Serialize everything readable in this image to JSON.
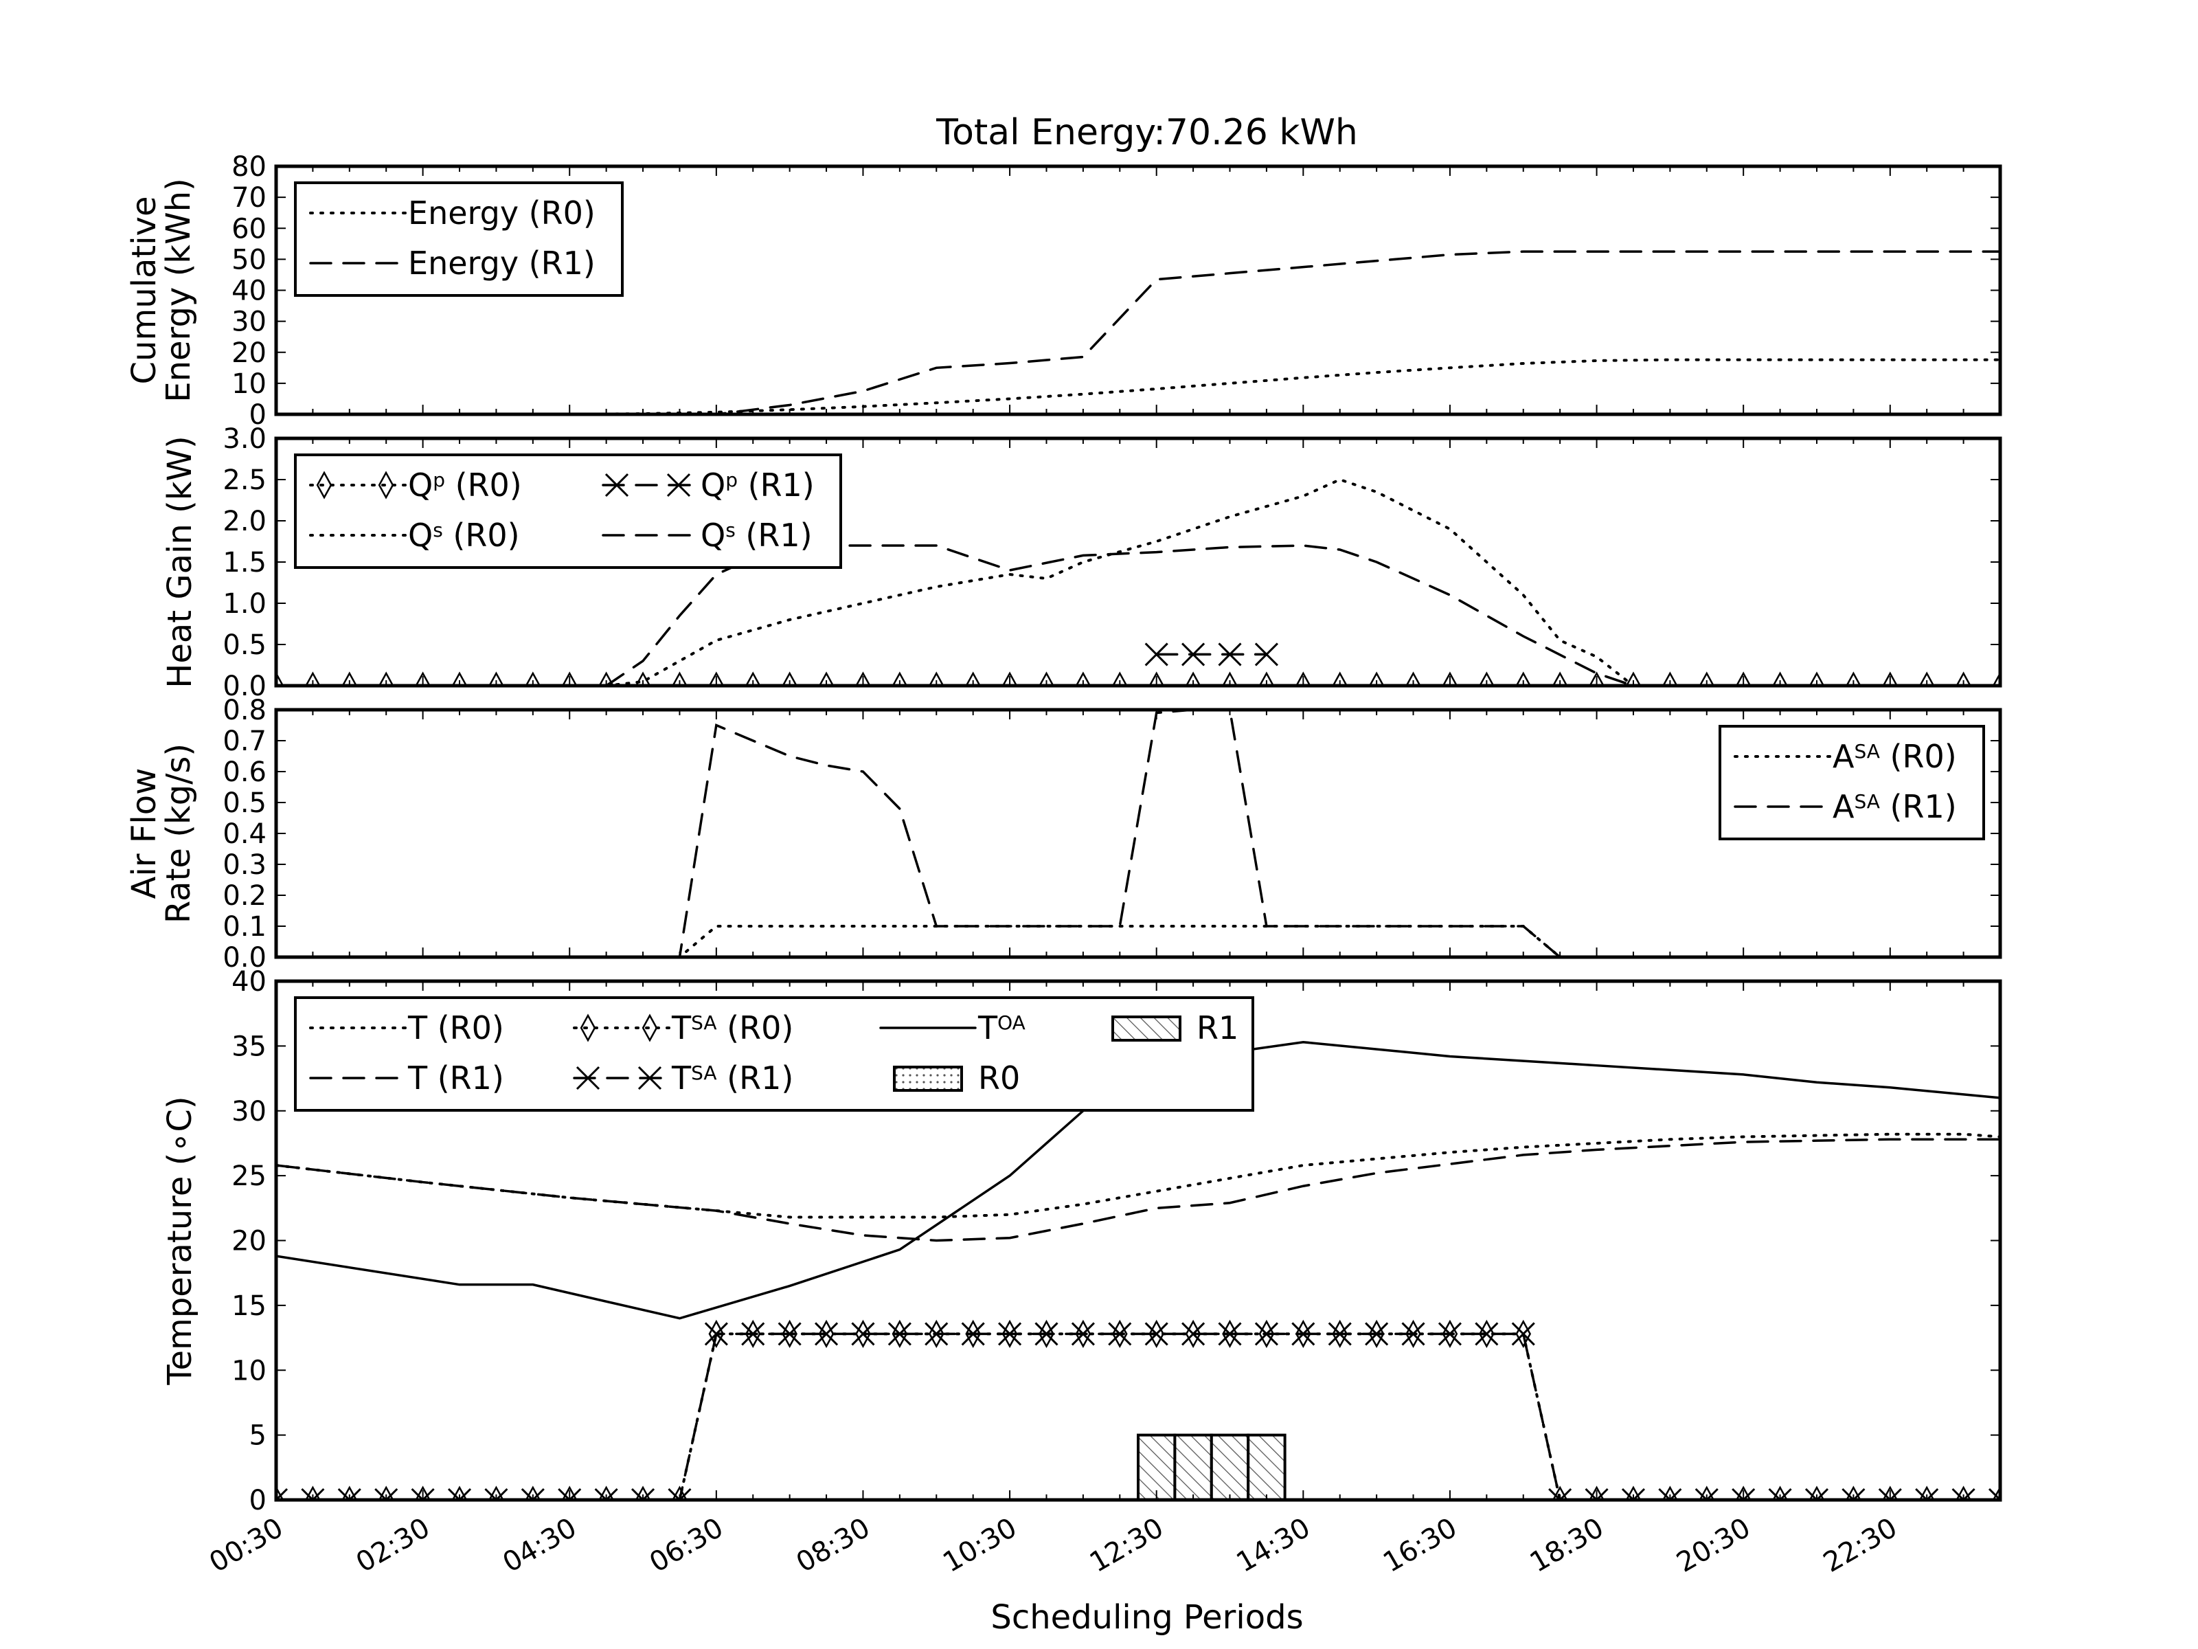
{
  "title": "Total Energy:70.26 kWh",
  "xlabel": "Scheduling Periods",
  "x_tick_labels": [
    "00:30",
    "02:30",
    "04:30",
    "06:30",
    "08:30",
    "10:30",
    "12:30",
    "14:30",
    "16:30",
    "18:30",
    "20:30",
    "22:30"
  ],
  "colors": {
    "line": "#000000",
    "background": "#ffffff",
    "hatch": "#555555"
  },
  "chart_data": [
    {
      "type": "line",
      "ylabel_lines": [
        "Cumulative",
        "Energy (kWh)"
      ],
      "ylim": [
        0,
        80
      ],
      "yticks": [
        0,
        10,
        20,
        30,
        40,
        50,
        60,
        70,
        80
      ],
      "legend": {
        "position": "top-left",
        "entries": [
          "Energy (R0)",
          "Energy (R1)"
        ]
      },
      "series": [
        {
          "name": "Energy (R0)",
          "style": "dotted",
          "x": [
            0,
            8,
            10,
            12,
            14,
            16,
            18,
            20,
            22,
            24,
            26,
            28,
            30,
            32,
            34,
            36,
            38,
            40,
            42,
            44,
            46,
            47
          ],
          "y": [
            0,
            0,
            0.2,
            0.7,
            1.5,
            2.5,
            3.7,
            5.0,
            6.5,
            8.2,
            10.0,
            11.8,
            13.5,
            15.0,
            16.4,
            17.3,
            17.6,
            17.6,
            17.6,
            17.6,
            17.6,
            17.6
          ]
        },
        {
          "name": "Energy (R1)",
          "style": "dashed",
          "x": [
            0,
            12,
            14,
            16,
            18,
            20,
            22,
            24,
            26,
            28,
            30,
            32,
            34,
            36,
            38,
            40,
            42,
            44,
            46,
            47
          ],
          "y": [
            0,
            0,
            3.0,
            7.5,
            15.0,
            16.5,
            18.5,
            43.5,
            45.5,
            47.5,
            49.5,
            51.5,
            52.5,
            52.5,
            52.5,
            52.5,
            52.5,
            52.5,
            52.5,
            52.5
          ]
        }
      ]
    },
    {
      "type": "line",
      "ylabel_lines": [
        "Heat Gain (kW)"
      ],
      "ylim": [
        0,
        3.0
      ],
      "yticks": [
        0.0,
        0.5,
        1.0,
        1.5,
        2.0,
        2.5,
        3.0
      ],
      "legend": {
        "position": "top-left",
        "entries": [
          "Qp (R0)",
          "Qp (R1)",
          "Qs (R0)",
          "Qs (R1)"
        ]
      },
      "series": [
        {
          "name": "Qp (R0)",
          "style": "dotted",
          "marker": "thin-diamond",
          "x": [
            0,
            1,
            2,
            3,
            4,
            5,
            6,
            7,
            8,
            9,
            10,
            11,
            12,
            13,
            14,
            15,
            16,
            17,
            18,
            19,
            20,
            21,
            22,
            23,
            24,
            25,
            26,
            27,
            28,
            29,
            30,
            31,
            32,
            33,
            34,
            35,
            36,
            37,
            38,
            39,
            40,
            41,
            42,
            43,
            44,
            45,
            46,
            47
          ],
          "y": [
            0,
            0,
            0,
            0,
            0,
            0,
            0,
            0,
            0,
            0,
            0,
            0,
            0,
            0,
            0,
            0,
            0,
            0,
            0,
            0,
            0,
            0,
            0,
            0,
            0,
            0,
            0,
            0,
            0,
            0,
            0,
            0,
            0,
            0,
            0,
            0,
            0,
            0,
            0,
            0,
            0,
            0,
            0,
            0,
            0,
            0,
            0,
            0
          ]
        },
        {
          "name": "Qp (R1)",
          "style": "dashed",
          "marker": "x",
          "x": [
            24,
            25,
            26,
            27
          ],
          "y": [
            0.38,
            0.38,
            0.38,
            0.38
          ]
        },
        {
          "name": "Qs (R0)",
          "style": "dotted",
          "x": [
            9,
            10,
            12,
            14,
            16,
            18,
            20,
            21,
            22,
            24,
            26,
            28,
            29,
            30,
            32,
            34,
            35,
            36,
            37
          ],
          "y": [
            0,
            0.05,
            0.55,
            0.8,
            1.0,
            1.2,
            1.35,
            1.3,
            1.5,
            1.75,
            2.05,
            2.3,
            2.5,
            2.35,
            1.9,
            1.1,
            0.55,
            0.35,
            0
          ]
        },
        {
          "name": "Qs (R1)",
          "style": "dashed",
          "x": [
            9,
            10,
            11,
            12,
            13,
            14,
            16,
            18,
            20,
            22,
            24,
            26,
            28,
            29,
            30,
            32,
            34,
            36,
            37
          ],
          "y": [
            0,
            0.3,
            0.85,
            1.35,
            1.55,
            1.7,
            1.7,
            1.7,
            1.4,
            1.58,
            1.62,
            1.68,
            1.7,
            1.65,
            1.5,
            1.1,
            0.6,
            0.15,
            0
          ]
        }
      ]
    },
    {
      "type": "line",
      "ylabel_lines": [
        "Air Flow",
        "Rate (kg/s)"
      ],
      "ylim": [
        0,
        0.8
      ],
      "yticks": [
        0.0,
        0.1,
        0.2,
        0.3,
        0.4,
        0.5,
        0.6,
        0.7,
        0.8
      ],
      "legend": {
        "position": "top-right",
        "entries": [
          "ASA (R0)",
          "ASA (R1)"
        ]
      },
      "series": [
        {
          "name": "ASA (R0)",
          "style": "dotted",
          "x": [
            0,
            11,
            12,
            20,
            34,
            35,
            47
          ],
          "y": [
            0,
            0,
            0.1,
            0.1,
            0.1,
            0,
            0
          ]
        },
        {
          "name": "ASA (R1)",
          "style": "dashed",
          "x": [
            0,
            11,
            12,
            13,
            14,
            15,
            16,
            17,
            18,
            19,
            23,
            24,
            25,
            26,
            27,
            34,
            35,
            47
          ],
          "y": [
            0,
            0,
            0.75,
            0.7,
            0.65,
            0.62,
            0.6,
            0.48,
            0.1,
            0.1,
            0.1,
            0.79,
            0.8,
            0.8,
            0.1,
            0.1,
            0,
            0
          ]
        }
      ]
    },
    {
      "type": "line",
      "ylabel_lines": [
        "Temperature (∘C)"
      ],
      "ylim": [
        0,
        40
      ],
      "yticks": [
        0,
        5,
        10,
        15,
        20,
        25,
        30,
        35,
        40
      ],
      "legend": {
        "position": "top-left",
        "entries": [
          "T (R0)",
          "T (R1)",
          "TSA (R0)",
          "TSA (R1)",
          "TOA",
          "R0",
          "R1"
        ]
      },
      "series": [
        {
          "name": "T (R0)",
          "style": "dotted",
          "x": [
            0,
            4,
            8,
            12,
            14,
            16,
            18,
            20,
            22,
            24,
            26,
            28,
            30,
            32,
            34,
            36,
            38,
            40,
            42,
            44,
            46,
            47
          ],
          "y": [
            25.8,
            24.5,
            23.3,
            22.3,
            21.8,
            21.8,
            21.8,
            22.0,
            22.8,
            23.8,
            24.8,
            25.8,
            26.3,
            26.8,
            27.2,
            27.5,
            27.8,
            28.0,
            28.1,
            28.2,
            28.2,
            28.0
          ]
        },
        {
          "name": "T (R1)",
          "style": "dashed",
          "x": [
            0,
            4,
            8,
            12,
            14,
            16,
            18,
            20,
            22,
            24,
            26,
            28,
            30,
            32,
            34,
            36,
            38,
            40,
            42,
            44,
            46,
            47
          ],
          "y": [
            25.8,
            24.5,
            23.3,
            22.3,
            21.3,
            20.4,
            20.0,
            20.2,
            21.3,
            22.5,
            22.9,
            24.2,
            25.2,
            25.9,
            26.6,
            27.0,
            27.3,
            27.6,
            27.7,
            27.8,
            27.8,
            27.8
          ]
        },
        {
          "name": "TSA (R0)",
          "style": "dotted",
          "marker": "thin-diamond",
          "x": [
            0,
            1,
            2,
            3,
            4,
            5,
            6,
            7,
            8,
            9,
            10,
            11,
            12,
            13,
            14,
            15,
            16,
            17,
            18,
            19,
            20,
            21,
            22,
            23,
            24,
            25,
            26,
            27,
            28,
            29,
            30,
            31,
            32,
            33,
            34,
            35,
            36,
            37,
            38,
            39,
            40,
            41,
            42,
            43,
            44,
            45,
            46,
            47
          ],
          "y": [
            0,
            0,
            0,
            0,
            0,
            0,
            0,
            0,
            0,
            0,
            0,
            0,
            12.8,
            12.8,
            12.8,
            12.8,
            12.8,
            12.8,
            12.8,
            12.8,
            12.8,
            12.8,
            12.8,
            12.8,
            12.8,
            12.8,
            12.8,
            12.8,
            12.8,
            12.8,
            12.8,
            12.8,
            12.8,
            12.8,
            12.8,
            0,
            0,
            0,
            0,
            0,
            0,
            0,
            0,
            0,
            0,
            0,
            0,
            0
          ]
        },
        {
          "name": "TSA (R1)",
          "style": "dashed",
          "marker": "x",
          "x": [
            0,
            1,
            2,
            3,
            4,
            5,
            6,
            7,
            8,
            9,
            10,
            11,
            12,
            13,
            14,
            15,
            16,
            17,
            18,
            19,
            20,
            21,
            22,
            23,
            24,
            25,
            26,
            27,
            28,
            29,
            30,
            31,
            32,
            33,
            34,
            35,
            36,
            37,
            38,
            39,
            40,
            41,
            42,
            43,
            44,
            45,
            46,
            47
          ],
          "y": [
            0,
            0,
            0,
            0,
            0,
            0,
            0,
            0,
            0,
            0,
            0,
            0,
            12.8,
            12.8,
            12.8,
            12.8,
            12.8,
            12.8,
            12.8,
            12.8,
            12.8,
            12.8,
            12.8,
            12.8,
            12.8,
            12.8,
            12.8,
            12.8,
            12.8,
            12.8,
            12.8,
            12.8,
            12.8,
            12.8,
            12.8,
            0,
            0,
            0,
            0,
            0,
            0,
            0,
            0,
            0,
            0,
            0,
            0,
            0
          ]
        },
        {
          "name": "TOA",
          "style": "solid",
          "x": [
            0,
            5,
            7,
            11,
            14,
            17,
            20,
            22,
            24,
            26,
            28,
            32,
            36,
            40,
            42,
            44,
            47
          ],
          "y": [
            18.8,
            16.6,
            16.6,
            14.0,
            16.5,
            19.3,
            25.0,
            30.0,
            33.2,
            34.5,
            35.3,
            34.2,
            33.5,
            32.8,
            32.2,
            31.8,
            31.0
          ]
        }
      ],
      "bars": [
        {
          "name": "R1",
          "pattern": "hatched",
          "x": [
            24,
            25,
            26,
            27
          ],
          "values": [
            5,
            5,
            5,
            5
          ]
        },
        {
          "name": "R0",
          "pattern": "dotted",
          "x": [],
          "values": []
        }
      ]
    }
  ]
}
